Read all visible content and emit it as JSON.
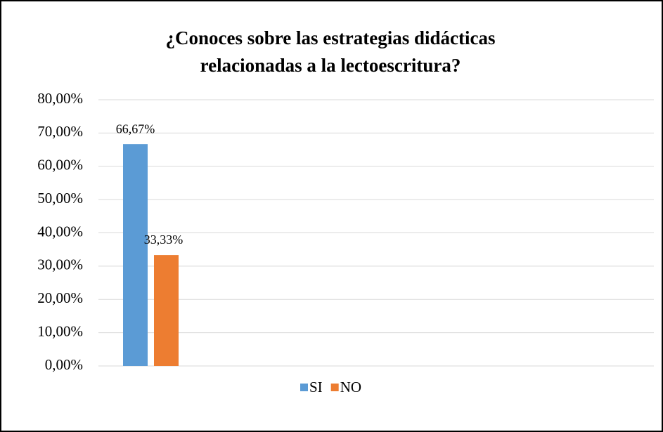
{
  "chart_data": {
    "type": "bar",
    "title": [
      "¿Conoces sobre las estrategias didácticas",
      "relacionadas a la lectoescritura?"
    ],
    "categories": [
      null
    ],
    "series": [
      {
        "name": "SI",
        "color": "#5b9bd5",
        "values": [
          66.67
        ],
        "value_labels": [
          "66,67%"
        ]
      },
      {
        "name": "NO",
        "color": "#ed7d31",
        "values": [
          33.33
        ],
        "value_labels": [
          "33,33%"
        ]
      }
    ],
    "ylim": [
      0,
      80
    ],
    "yticks": [
      {
        "value": 0,
        "label": "0,00%"
      },
      {
        "value": 10,
        "label": "10,00%"
      },
      {
        "value": 20,
        "label": "20,00%"
      },
      {
        "value": 30,
        "label": "30,00%"
      },
      {
        "value": 40,
        "label": "40,00%"
      },
      {
        "value": 50,
        "label": "50,00%"
      },
      {
        "value": 60,
        "label": "60,00%"
      },
      {
        "value": 70,
        "label": "70,00%"
      },
      {
        "value": 80,
        "label": "80,00%"
      }
    ],
    "grid": true,
    "legend": "bottom"
  }
}
